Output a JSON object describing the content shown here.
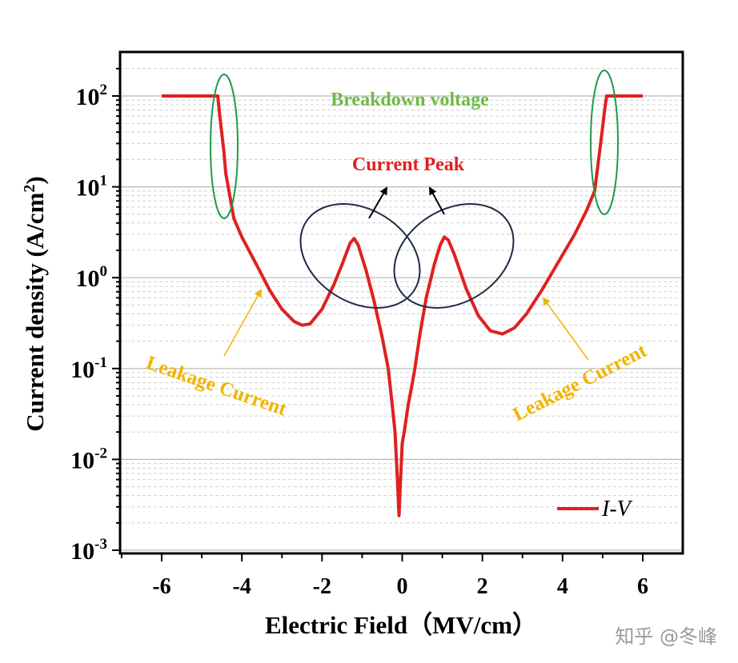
{
  "chart_data": {
    "type": "line",
    "xlabel": "Electric Field（MV/cm）",
    "ylabel_base": "Current density (A/cm",
    "ylabel_sup": "2",
    "ylabel_tail": ")",
    "log_y": true,
    "xlim": [
      -7,
      7
    ],
    "ylim": [
      0.001,
      250
    ],
    "grid": "horizontal major and minor (dashed)",
    "x_ticks": [
      {
        "value": -6,
        "label": "-6"
      },
      {
        "value": -4,
        "label": "-4"
      },
      {
        "value": -2,
        "label": "-2"
      },
      {
        "value": 0,
        "label": "0"
      },
      {
        "value": 2,
        "label": "2"
      },
      {
        "value": 4,
        "label": "4"
      },
      {
        "value": 6,
        "label": "6"
      }
    ],
    "y_ticks": [
      {
        "value": 0.001,
        "base": "10",
        "exp": "-3"
      },
      {
        "value": 0.01,
        "base": "10",
        "exp": "-2"
      },
      {
        "value": 0.1,
        "base": "10",
        "exp": "-1"
      },
      {
        "value": 1,
        "base": "10",
        "exp": "0"
      },
      {
        "value": 10,
        "base": "10",
        "exp": "1"
      },
      {
        "value": 100,
        "base": "10",
        "exp": "2"
      }
    ],
    "legend_position": "bottom-right",
    "series": [
      {
        "name": "I-V",
        "color": "#e02020",
        "points": [
          [
            -6.0,
            100
          ],
          [
            -4.6,
            100
          ],
          [
            -4.55,
            60
          ],
          [
            -4.45,
            25
          ],
          [
            -4.4,
            14
          ],
          [
            -4.3,
            8
          ],
          [
            -4.2,
            4.5
          ],
          [
            -4.0,
            2.8
          ],
          [
            -3.6,
            1.3
          ],
          [
            -3.3,
            0.72
          ],
          [
            -3.0,
            0.45
          ],
          [
            -2.7,
            0.33
          ],
          [
            -2.5,
            0.3
          ],
          [
            -2.3,
            0.31
          ],
          [
            -2.0,
            0.45
          ],
          [
            -1.7,
            0.85
          ],
          [
            -1.5,
            1.4
          ],
          [
            -1.3,
            2.4
          ],
          [
            -1.2,
            2.7
          ],
          [
            -1.1,
            2.3
          ],
          [
            -0.9,
            1.2
          ],
          [
            -0.7,
            0.55
          ],
          [
            -0.5,
            0.22
          ],
          [
            -0.35,
            0.1
          ],
          [
            -0.25,
            0.04
          ],
          [
            -0.18,
            0.02
          ],
          [
            -0.12,
            0.006
          ],
          [
            -0.08,
            0.0024
          ],
          [
            -0.05,
            0.005
          ],
          [
            0.0,
            0.015
          ],
          [
            0.05,
            0.02
          ],
          [
            0.15,
            0.04
          ],
          [
            0.3,
            0.09
          ],
          [
            0.45,
            0.25
          ],
          [
            0.6,
            0.6
          ],
          [
            0.8,
            1.4
          ],
          [
            0.95,
            2.3
          ],
          [
            1.05,
            2.8
          ],
          [
            1.15,
            2.6
          ],
          [
            1.3,
            1.8
          ],
          [
            1.6,
            0.75
          ],
          [
            1.9,
            0.38
          ],
          [
            2.2,
            0.26
          ],
          [
            2.5,
            0.24
          ],
          [
            2.8,
            0.28
          ],
          [
            3.1,
            0.4
          ],
          [
            3.5,
            0.75
          ],
          [
            3.9,
            1.5
          ],
          [
            4.3,
            3.0
          ],
          [
            4.6,
            5.5
          ],
          [
            4.8,
            9
          ],
          [
            4.95,
            30
          ],
          [
            5.05,
            70
          ],
          [
            5.1,
            100
          ],
          [
            6.0,
            100
          ]
        ]
      }
    ],
    "annotations": {
      "breakdown": "Breakdown  voltage",
      "current_peak": "Current Peak",
      "leakage_left": "Leakage Current",
      "leakage_right": "Leakage Current"
    },
    "legend": {
      "entry": "I-V"
    }
  },
  "watermark": "知乎 @冬峰",
  "colors": {
    "curve": "#e02020",
    "breakdown": "#6dbb45",
    "ellipse_breakdown": "#1f9a4a",
    "peak_text": "#e02020",
    "ellipse_peak": "#1c2a44",
    "leakage": "#f0b400"
  }
}
